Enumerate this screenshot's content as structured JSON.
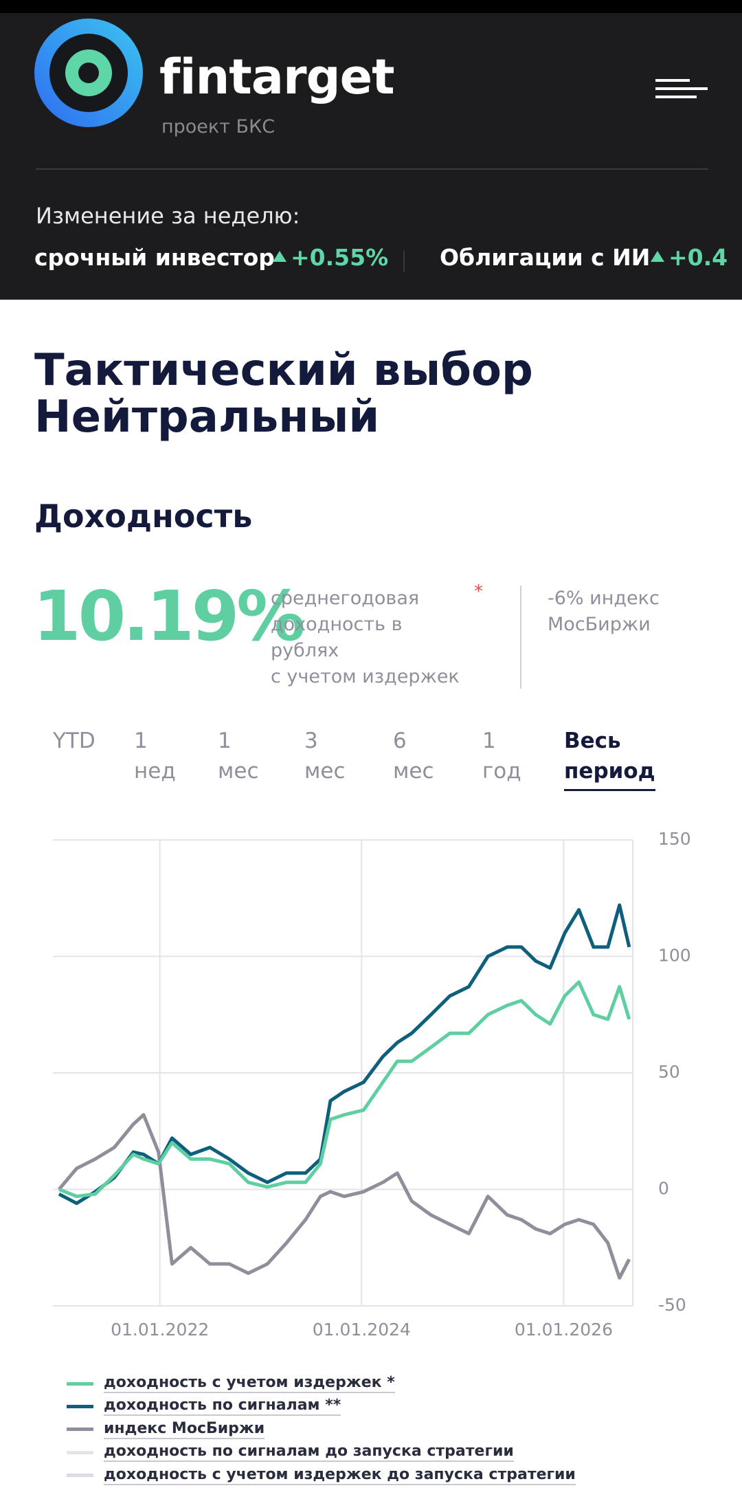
{
  "header": {
    "brand": "fintarget",
    "subbrand": "проект БКС",
    "weekly_label": "Изменение за неделю:",
    "ticker": [
      {
        "name": "срочный инвестор",
        "change": "+0.55%"
      },
      {
        "name": "Облигации с ИИ",
        "change": "+0.4"
      }
    ]
  },
  "title": [
    "Тактический выбор",
    "Нейтральный"
  ],
  "section_title": "Доходность",
  "summary": {
    "value": "10.19%",
    "description": [
      "среднегодовая",
      "доходность в",
      "рублях",
      "с учетом издержек"
    ],
    "asterisk": "*",
    "index_note": [
      "-6% индекс",
      "МосБиржи"
    ]
  },
  "periods": [
    {
      "lines": [
        "YTD"
      ]
    },
    {
      "lines": [
        "1",
        "нед"
      ]
    },
    {
      "lines": [
        "1",
        "мес"
      ]
    },
    {
      "lines": [
        "3",
        "мес"
      ]
    },
    {
      "lines": [
        "6",
        "мес"
      ]
    },
    {
      "lines": [
        "1",
        "год"
      ]
    },
    {
      "lines": [
        "Весь",
        "период"
      ],
      "active": true
    }
  ],
  "chart_data": {
    "type": "line",
    "x": [
      "2021-01-01",
      "2021-03-06",
      "2021-05-12",
      "2021-07-20",
      "2021-09-27",
      "2021-11-03",
      "2021-12-27",
      "2022-02-14",
      "2022-04-23",
      "2022-07-01",
      "2022-09-09",
      "2022-11-17",
      "2023-01-25",
      "2023-04-04",
      "2023-06-12",
      "2023-08-05",
      "2023-09-10",
      "2023-10-30",
      "2024-01-08",
      "2024-03-18",
      "2024-05-09",
      "2024-06-30",
      "2024-09-08",
      "2024-11-15",
      "2025-01-23",
      "2025-04-02",
      "2025-06-11",
      "2025-08-01",
      "2025-09-22",
      "2025-11-13",
      "2026-01-05",
      "2026-02-25",
      "2026-04-19",
      "2026-06-10",
      "2026-07-22",
      "2026-08-26"
    ],
    "series": [
      {
        "name": "доходность с учетом издержек *",
        "color": "#5fcea0",
        "values": [
          0,
          -3,
          -2,
          6,
          15,
          13,
          11,
          20,
          13,
          13,
          11,
          3,
          1,
          3,
          3,
          11,
          30,
          32,
          34,
          46,
          55,
          55,
          61,
          67,
          67,
          75,
          79,
          81,
          75,
          71,
          83,
          89,
          75,
          73,
          87,
          73
        ]
      },
      {
        "name": "доходность по сигналам **",
        "color": "#0e5f7c",
        "values": [
          -2,
          -6,
          -1,
          5,
          16,
          15,
          11,
          22,
          15,
          18,
          13,
          7,
          3,
          7,
          7,
          13,
          38,
          42,
          46,
          57,
          63,
          67,
          75,
          83,
          87,
          100,
          104,
          104,
          98,
          95,
          110,
          120,
          104,
          104,
          122,
          104
        ]
      },
      {
        "name": "индекс МосБиржи",
        "color": "#8f8f9b",
        "values": [
          0,
          9,
          13,
          18,
          28,
          32,
          16,
          -32,
          -25,
          -32,
          -32,
          -36,
          -32,
          -23,
          -13,
          -3,
          -1,
          -3,
          -1,
          3,
          7,
          -5,
          -11,
          -15,
          -19,
          -3,
          -11,
          -13,
          -17,
          -19,
          -15,
          -13,
          -15,
          -23,
          -38,
          -30
        ]
      },
      {
        "name": "доходность по сигналам до запуска стратегии",
        "color": "#e4e4ea",
        "values": [
          null,
          null,
          null,
          null,
          null,
          null,
          null,
          null,
          null,
          null,
          null,
          null,
          null,
          null,
          null,
          null,
          null,
          null,
          null,
          null,
          null,
          null,
          null,
          null,
          null,
          null,
          null,
          null,
          null,
          null,
          null,
          null,
          null,
          null,
          null,
          null
        ]
      },
      {
        "name": "доходность с учетом издержек до запуска стратегии",
        "color": "#dcdce8",
        "values": [
          null,
          null,
          null,
          null,
          null,
          null,
          null,
          null,
          null,
          null,
          null,
          null,
          null,
          null,
          null,
          null,
          null,
          null,
          null,
          null,
          null,
          null,
          null,
          null,
          null,
          null,
          null,
          null,
          null,
          null,
          null,
          null,
          null,
          null,
          null,
          null
        ]
      }
    ],
    "xlim": [
      "2020-12-10",
      "2026-09-08"
    ],
    "xticks": [
      {
        "value": "2022-01-01",
        "label": "01.01.2022"
      },
      {
        "value": "2024-01-01",
        "label": "01.01.2024"
      },
      {
        "value": "2026-01-01",
        "label": "01.01.2026"
      }
    ],
    "ylim": [
      -50,
      150
    ],
    "yticks": [
      -50,
      0,
      50,
      100,
      150
    ],
    "grid": true
  }
}
